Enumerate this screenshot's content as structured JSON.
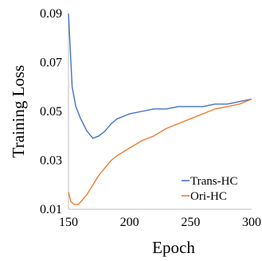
{
  "chart_data": {
    "type": "line",
    "title": "",
    "xlabel": "Epoch",
    "ylabel": "Training Loss",
    "xlim": [
      150,
      300
    ],
    "ylim": [
      0.01,
      0.09
    ],
    "xticks": [
      "150",
      "200",
      "250",
      "300"
    ],
    "yticks": [
      "0.01",
      "0.03",
      "0.05",
      "0.07",
      "0.09"
    ],
    "grid": false,
    "legend_position": "bottom-right",
    "series": [
      {
        "name": "Trans-HC",
        "color": "#4472C4",
        "x": [
          150,
          153,
          156,
          160,
          165,
          170,
          175,
          180,
          185,
          190,
          200,
          210,
          220,
          230,
          240,
          250,
          260,
          270,
          280,
          290,
          300
        ],
        "y": [
          0.09,
          0.06,
          0.052,
          0.047,
          0.042,
          0.039,
          0.04,
          0.042,
          0.045,
          0.047,
          0.049,
          0.05,
          0.051,
          0.051,
          0.052,
          0.052,
          0.052,
          0.053,
          0.053,
          0.054,
          0.055
        ]
      },
      {
        "name": "Ori-HC",
        "color": "#ED7D31",
        "x": [
          150,
          152,
          155,
          158,
          160,
          165,
          170,
          175,
          180,
          185,
          190,
          200,
          210,
          220,
          230,
          240,
          250,
          260,
          270,
          280,
          290,
          300
        ],
        "y": [
          0.017,
          0.013,
          0.012,
          0.012,
          0.013,
          0.016,
          0.02,
          0.024,
          0.027,
          0.03,
          0.032,
          0.035,
          0.038,
          0.04,
          0.043,
          0.045,
          0.047,
          0.049,
          0.051,
          0.052,
          0.053,
          0.055
        ]
      }
    ]
  }
}
